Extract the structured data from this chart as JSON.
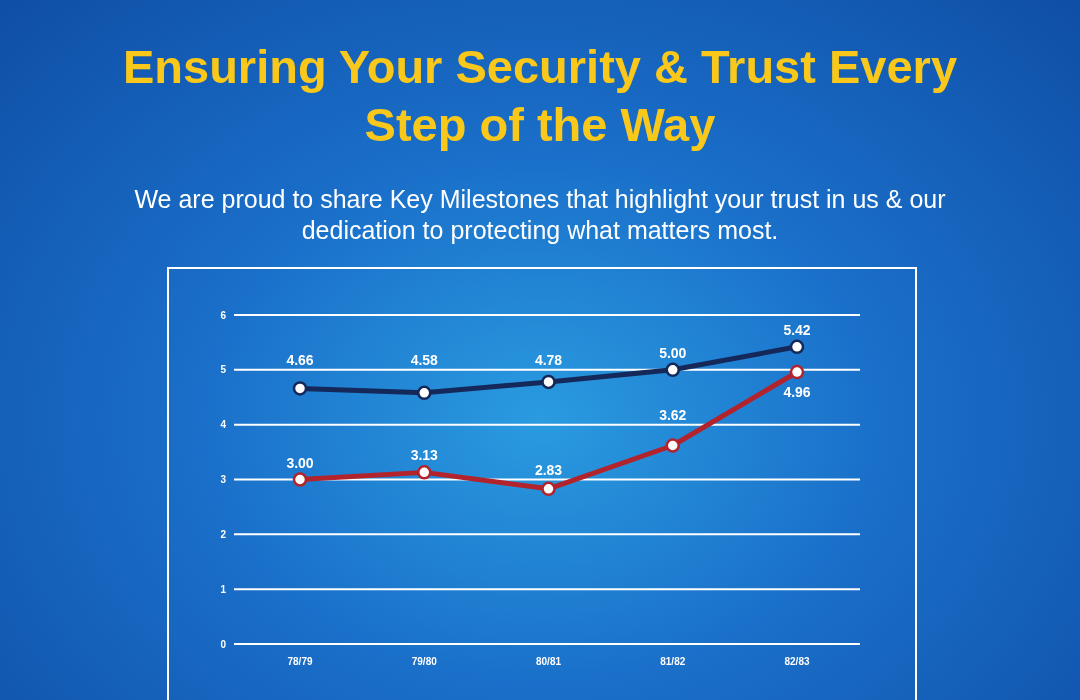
{
  "chart_data": {
    "type": "line",
    "title": "Ensuring Your Security & Trust Every Step of the Way",
    "subtitle": "We are proud to share Key Milestones that highlight your trust in us & our dedication to protecting what matters most.",
    "categories": [
      "78/79",
      "79/80",
      "80/81",
      "81/82",
      "82/83"
    ],
    "series": [
      {
        "color": "#15285a",
        "values": [
          4.66,
          4.58,
          4.78,
          5.0,
          5.42
        ],
        "value_labels": [
          "4.66",
          "4.58",
          "4.78",
          "5.00",
          "5.42"
        ]
      },
      {
        "color": "#b3232c",
        "values": [
          3.0,
          3.13,
          2.83,
          3.62,
          4.96
        ],
        "value_labels": [
          "3.00",
          "3.13",
          "2.83",
          "3.62",
          "4.96"
        ]
      }
    ],
    "ylim": [
      0,
      6
    ],
    "yticks": [
      0,
      1,
      2,
      3,
      4,
      5,
      6
    ],
    "grid": "y",
    "marker": "circle",
    "line_style": "solid"
  }
}
